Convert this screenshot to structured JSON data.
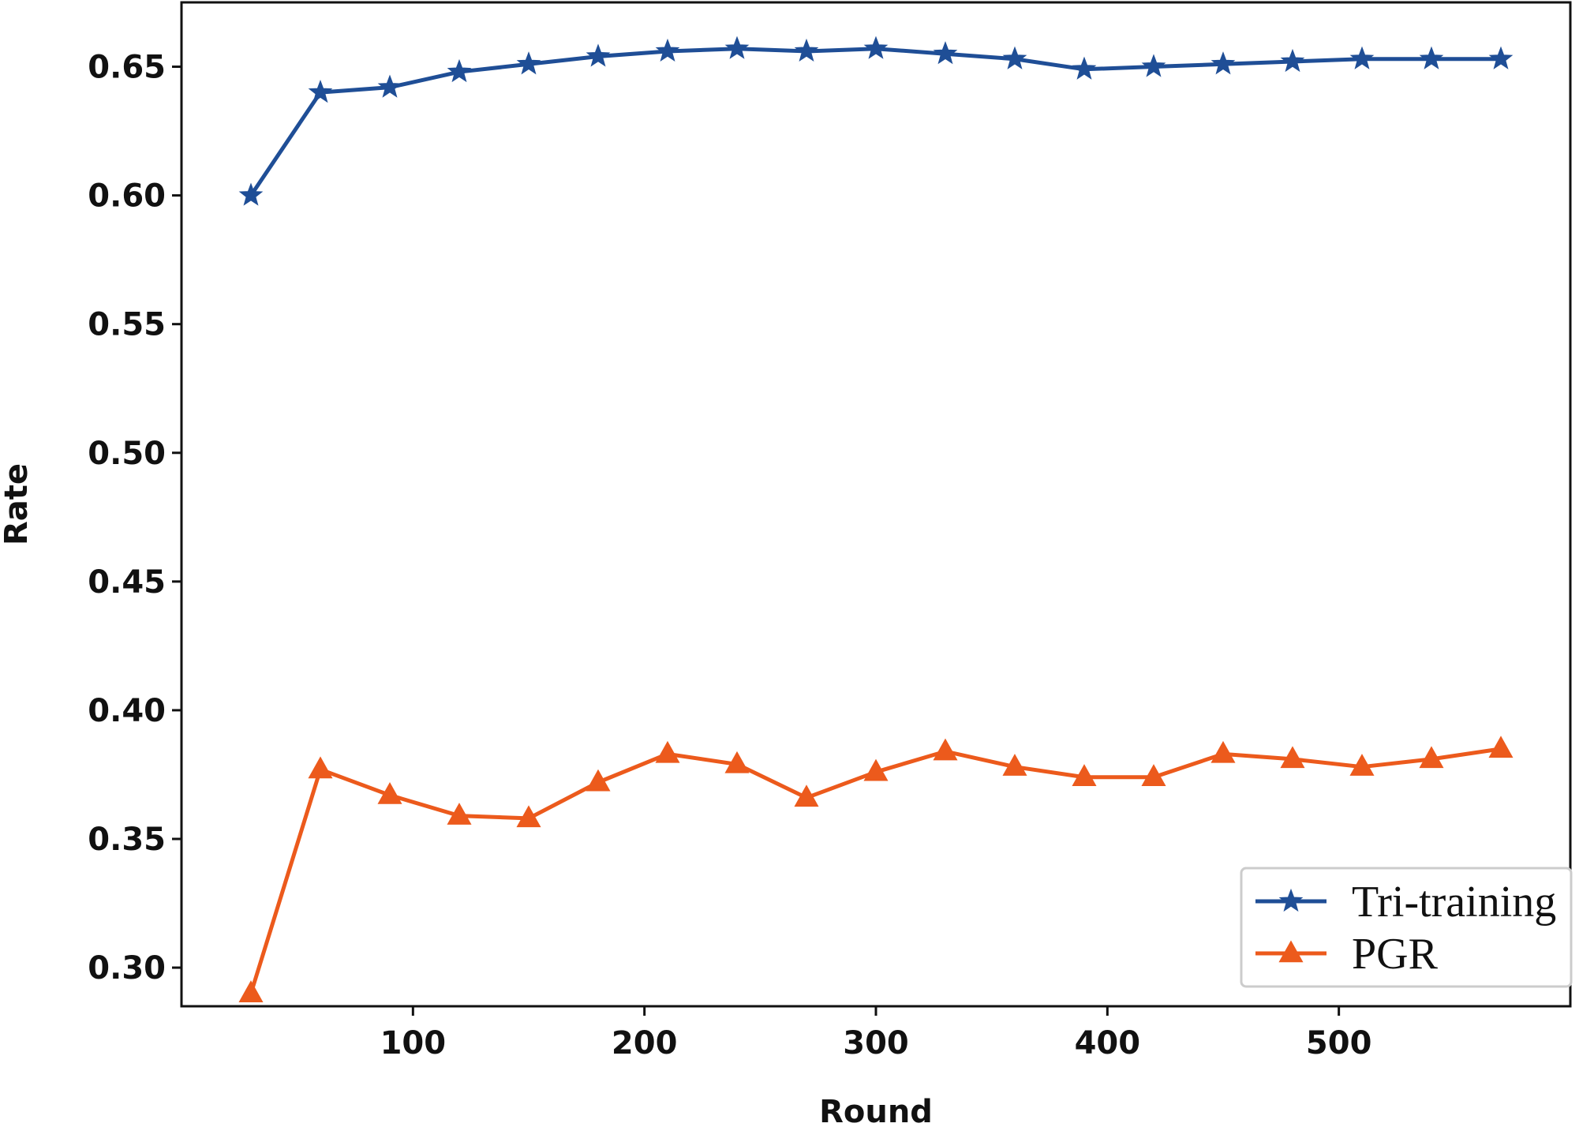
{
  "chart_data": {
    "type": "line",
    "title": "",
    "xlabel": "Round",
    "ylabel": "Rate",
    "xlim": [
      0,
      600
    ],
    "ylim": [
      0.285,
      0.675
    ],
    "x_ticks": [
      100,
      200,
      300,
      400,
      500
    ],
    "x_tick_labels": [
      "100",
      "200",
      "300",
      "400",
      "500"
    ],
    "y_ticks": [
      0.3,
      0.35,
      0.4,
      0.45,
      0.5,
      0.55,
      0.6,
      0.65
    ],
    "y_tick_labels": [
      "0.30",
      "0.35",
      "0.40",
      "0.45",
      "0.50",
      "0.55",
      "0.60",
      "0.65"
    ],
    "grid": false,
    "legend_position": "bottom-right",
    "x": [
      30,
      60,
      90,
      120,
      150,
      180,
      210,
      240,
      270,
      300,
      330,
      360,
      390,
      420,
      450,
      480,
      510,
      540,
      570
    ],
    "series": [
      {
        "name": "Tri-training",
        "color": "#1f4e96",
        "marker": "star",
        "values": [
          0.6,
          0.64,
          0.642,
          0.648,
          0.651,
          0.654,
          0.656,
          0.657,
          0.656,
          0.657,
          0.655,
          0.653,
          0.649,
          0.65,
          0.651,
          0.652,
          0.653,
          0.653,
          0.653
        ]
      },
      {
        "name": "PGR",
        "color": "#ec5a1c",
        "marker": "triangle",
        "values": [
          0.29,
          0.377,
          0.367,
          0.359,
          0.358,
          0.372,
          0.383,
          0.379,
          0.366,
          0.376,
          0.384,
          0.378,
          0.374,
          0.374,
          0.383,
          0.381,
          0.378,
          0.381,
          0.385
        ]
      }
    ]
  }
}
